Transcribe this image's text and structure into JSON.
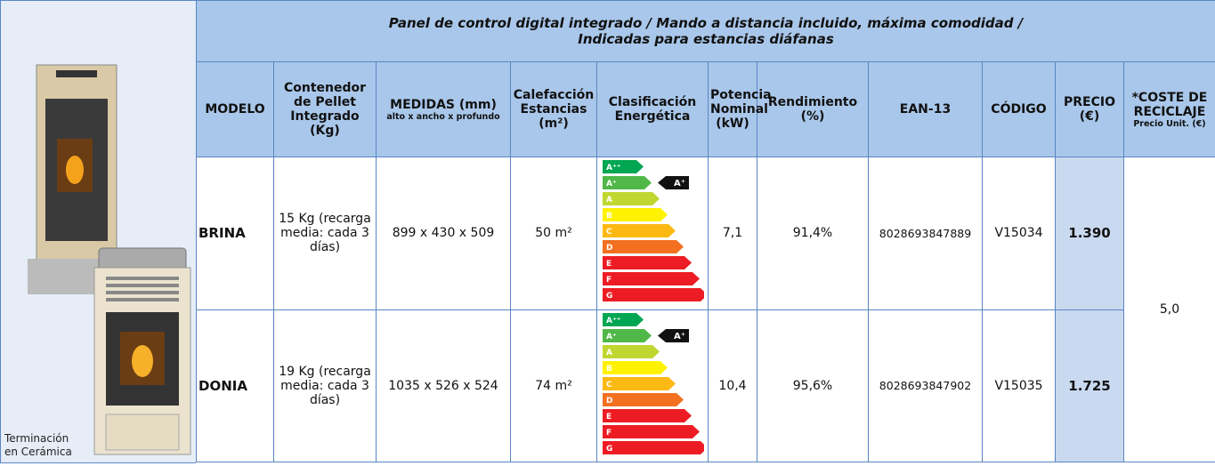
{
  "image_caption": "Terminación en Cerámica",
  "table": {
    "title": [
      "Panel de control digital integrado / Mando a distancia incluido, máxima comodidad /",
      "Indicadas para estancias diáfanas"
    ],
    "headers": [
      {
        "label": "MODELO"
      },
      {
        "label": "Contenedor de Pellet Integrado (Kg)"
      },
      {
        "label": "MEDIDAS (mm)",
        "sub": "alto x ancho x profundo"
      },
      {
        "label": "Calefacción Estancias (m²)"
      },
      {
        "label": "Clasificación Energética"
      },
      {
        "label": "Potencia Nominal (kW)"
      },
      {
        "label": "Rendimiento (%)"
      },
      {
        "label": "EAN-13"
      },
      {
        "label": "CÓDIGO"
      },
      {
        "label": "PRECIO (€)"
      },
      {
        "label": "*COSTE DE RECICLAJE",
        "sub": "Precio Unit. (€)"
      }
    ],
    "energy_scale": [
      "A⁺⁺",
      "A⁺",
      "A",
      "B",
      "C",
      "D",
      "E",
      "F",
      "G"
    ],
    "rows": [
      {
        "model": "BRINA",
        "container": "15 Kg (recarga media: cada 3 días)",
        "dims": "899 x 430 x 509",
        "heating": "50 m²",
        "energy_class": "A⁺",
        "power": "7,1",
        "efficiency": "91,4%",
        "ean": "8028693847889",
        "code": "V15034",
        "price": "1.390"
      },
      {
        "model": "DONIA",
        "container": "19 Kg (recarga media: cada 3 días)",
        "dims": "1035 x 526 x 524",
        "heating": "74 m²",
        "energy_class": "A⁺",
        "power": "10,4",
        "efficiency": "95,6%",
        "ean": "8028693847902",
        "code": "V15035",
        "price": "1.725"
      }
    ],
    "recycling_cost": "5,0"
  }
}
